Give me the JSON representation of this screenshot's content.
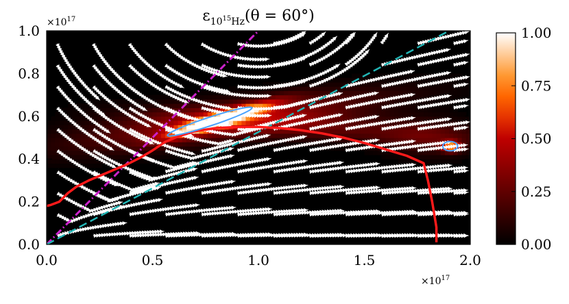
{
  "chart_data": {
    "type": "heatmap",
    "title": {
      "symbol": "ε",
      "subscript": "10",
      "subscript_sup": "15",
      "subscript_unit": "Hz",
      "suffix": "(θ = 60°)"
    },
    "x_multiplier": "×10",
    "x_multiplier_exp": "17",
    "y_multiplier": "×10",
    "y_multiplier_exp": "17",
    "xlim": [
      0.0,
      2.0
    ],
    "ylim": [
      0.0,
      1.0
    ],
    "x_ticks": [
      0.0,
      0.5,
      1.0,
      1.5,
      2.0
    ],
    "x_tick_labels": [
      "0.0",
      "0.5",
      "1.0",
      "1.5",
      "2.0"
    ],
    "y_ticks": [
      0.0,
      0.2,
      0.4,
      0.6,
      0.8,
      1.0
    ],
    "y_tick_labels": [
      "0.0",
      "0.2",
      "0.4",
      "0.6",
      "0.8",
      "1.0"
    ],
    "colorbar": {
      "range": [
        0.0,
        1.0
      ],
      "ticks": [
        0.0,
        0.25,
        0.5,
        0.75,
        1.0
      ],
      "tick_labels": [
        "0.00",
        "0.25",
        "0.50",
        "0.75",
        "1.00"
      ],
      "colormap": "gist_heat"
    },
    "emission_sources": [
      {
        "x": 0.82,
        "y": 0.585,
        "sx": 0.17,
        "sy": 0.022,
        "angle_deg": 17,
        "amp": 1.0
      },
      {
        "x": 0.85,
        "y": 0.58,
        "sx": 0.5,
        "sy": 0.06,
        "angle_deg": 8,
        "amp": 0.38
      },
      {
        "x": 1.3,
        "y": 0.55,
        "sx": 0.55,
        "sy": 0.045,
        "angle_deg": -4,
        "amp": 0.22
      },
      {
        "x": 1.91,
        "y": 0.46,
        "sx": 0.03,
        "sy": 0.017,
        "angle_deg": 0,
        "amp": 0.72
      },
      {
        "x": 1.8,
        "y": 0.5,
        "sx": 0.14,
        "sy": 0.06,
        "angle_deg": 0,
        "amp": 0.15
      }
    ],
    "red_boundary": [
      [
        0.0,
        0.18
      ],
      [
        0.02,
        0.185
      ],
      [
        0.06,
        0.2
      ],
      [
        0.1,
        0.24
      ],
      [
        0.14,
        0.27
      ],
      [
        0.2,
        0.3
      ],
      [
        0.26,
        0.325
      ],
      [
        0.32,
        0.35
      ],
      [
        0.38,
        0.375
      ],
      [
        0.44,
        0.405
      ],
      [
        0.5,
        0.44
      ],
      [
        0.56,
        0.48
      ],
      [
        0.62,
        0.505
      ],
      [
        0.7,
        0.53
      ],
      [
        0.8,
        0.545
      ],
      [
        0.9,
        0.55
      ],
      [
        1.0,
        0.55
      ],
      [
        1.1,
        0.545
      ],
      [
        1.2,
        0.535
      ],
      [
        1.3,
        0.52
      ],
      [
        1.4,
        0.5
      ],
      [
        1.5,
        0.475
      ],
      [
        1.6,
        0.445
      ],
      [
        1.7,
        0.415
      ],
      [
        1.78,
        0.38
      ],
      [
        1.8,
        0.3
      ],
      [
        1.82,
        0.2
      ],
      [
        1.84,
        0.08
      ],
      [
        1.84,
        0.01
      ]
    ],
    "cyan_dashed_line": [
      [
        0.0,
        0.0
      ],
      [
        1.9,
        1.0
      ]
    ],
    "magenta_dashdot_line": [
      [
        0.0,
        0.0
      ],
      [
        1.0,
        1.0
      ]
    ],
    "blue_contours": [
      {
        "cx": 0.77,
        "cy": 0.575,
        "rx": 0.21,
        "ry": 0.02,
        "angle_deg": 18
      },
      {
        "cx": 1.905,
        "cy": 0.46,
        "rx": 0.035,
        "ry": 0.022,
        "angle_deg": 0
      }
    ],
    "streamline_field": {
      "description_key": "velocity",
      "color": "#ffffff"
    }
  }
}
